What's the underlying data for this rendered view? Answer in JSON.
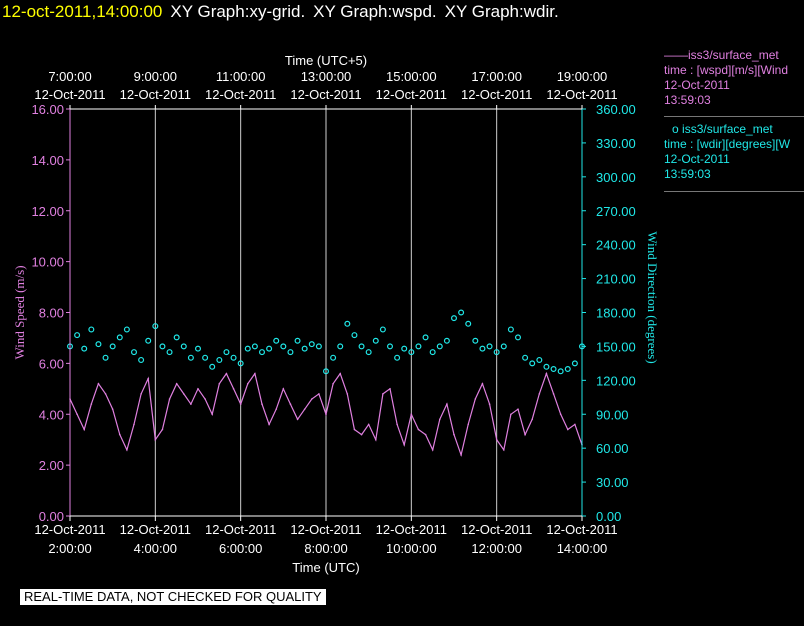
{
  "header": {
    "timestamp": "12-oct-2011,14:00:00",
    "graphs": [
      "XY Graph:xy-grid.",
      "XY Graph:wspd.",
      "XY Graph:wdir."
    ]
  },
  "legend": {
    "items": [
      {
        "marker": "——",
        "name": "iss3/surface_met",
        "var": "time : [wspd][m/s][Wind",
        "date": "12-Oct-2011",
        "time": "13:59:03",
        "color": "#e080e0"
      },
      {
        "marker": "o",
        "name": "iss3/surface_met",
        "var": "time : [wdir][degrees][W",
        "date": "12-Oct-2011",
        "time": "13:59:03",
        "color": "#20e8e8"
      }
    ]
  },
  "footer": {
    "qc_notice": "REAL-TIME DATA, NOT CHECKED FOR QUALITY"
  },
  "chart_data": {
    "type": "line",
    "top_axis_title": "Time (UTC+5)",
    "bottom_axis_title": "Time (UTC)",
    "left_axis_title": "Wind Speed (m/s)",
    "right_axis_title": "Wind Direction (degrees)",
    "top_ticks": [
      {
        "time": "7:00:00",
        "date": "12-Oct-2011"
      },
      {
        "time": "9:00:00",
        "date": "12-Oct-2011"
      },
      {
        "time": "11:00:00",
        "date": "12-Oct-2011"
      },
      {
        "time": "13:00:00",
        "date": "12-Oct-2011"
      },
      {
        "time": "15:00:00",
        "date": "12-Oct-2011"
      },
      {
        "time": "17:00:00",
        "date": "12-Oct-2011"
      },
      {
        "time": "19:00:00",
        "date": "12-Oct-2011"
      }
    ],
    "bottom_ticks": [
      {
        "time": "2:00:00",
        "date": "12-Oct-2011"
      },
      {
        "time": "4:00:00",
        "date": "12-Oct-2011"
      },
      {
        "time": "6:00:00",
        "date": "12-Oct-2011"
      },
      {
        "time": "8:00:00",
        "date": "12-Oct-2011"
      },
      {
        "time": "10:00:00",
        "date": "12-Oct-2011"
      },
      {
        "time": "12:00:00",
        "date": "12-Oct-2011"
      },
      {
        "time": "14:00:00",
        "date": "12-Oct-2011"
      }
    ],
    "xlim_utc": [
      "12-Oct-2011 02:00:00",
      "12-Oct-2011 14:00:00"
    ],
    "left_ticks": [
      "0.00",
      "2.00",
      "4.00",
      "6.00",
      "8.00",
      "10.00",
      "12.00",
      "14.00",
      "16.00"
    ],
    "right_ticks": [
      "0.00",
      "30.00",
      "60.00",
      "90.00",
      "120.00",
      "150.00",
      "180.00",
      "210.00",
      "240.00",
      "270.00",
      "300.00",
      "330.00",
      "360.00"
    ],
    "left_ylim": [
      0,
      16
    ],
    "right_ylim": [
      0,
      360
    ],
    "grid": "vertical lines at bottom ticks",
    "series": [
      {
        "name": "iss3/surface_met wspd",
        "axis": "left",
        "style": "line",
        "color": "#e080e0",
        "points": [
          [
            "02:00",
            4.6
          ],
          [
            "02:10",
            4.0
          ],
          [
            "02:20",
            3.4
          ],
          [
            "02:30",
            4.4
          ],
          [
            "02:40",
            5.2
          ],
          [
            "02:50",
            4.8
          ],
          [
            "03:00",
            4.2
          ],
          [
            "03:10",
            3.2
          ],
          [
            "03:20",
            2.6
          ],
          [
            "03:30",
            3.6
          ],
          [
            "03:40",
            4.8
          ],
          [
            "03:50",
            5.4
          ],
          [
            "04:00",
            3.0
          ],
          [
            "04:10",
            3.4
          ],
          [
            "04:20",
            4.6
          ],
          [
            "04:30",
            5.2
          ],
          [
            "04:40",
            4.8
          ],
          [
            "04:50",
            4.4
          ],
          [
            "05:00",
            5.0
          ],
          [
            "05:10",
            4.6
          ],
          [
            "05:20",
            4.0
          ],
          [
            "05:30",
            5.2
          ],
          [
            "05:40",
            5.6
          ],
          [
            "05:50",
            5.0
          ],
          [
            "06:00",
            4.4
          ],
          [
            "06:10",
            5.2
          ],
          [
            "06:20",
            5.6
          ],
          [
            "06:30",
            4.4
          ],
          [
            "06:40",
            3.6
          ],
          [
            "06:50",
            4.2
          ],
          [
            "07:00",
            5.0
          ],
          [
            "07:10",
            4.4
          ],
          [
            "07:20",
            3.8
          ],
          [
            "07:30",
            4.2
          ],
          [
            "07:40",
            4.6
          ],
          [
            "07:50",
            4.8
          ],
          [
            "08:00",
            4.0
          ],
          [
            "08:10",
            5.2
          ],
          [
            "08:20",
            5.6
          ],
          [
            "08:30",
            4.8
          ],
          [
            "08:40",
            3.4
          ],
          [
            "08:50",
            3.2
          ],
          [
            "09:00",
            3.6
          ],
          [
            "09:10",
            3.0
          ],
          [
            "09:20",
            4.8
          ],
          [
            "09:30",
            5.0
          ],
          [
            "09:40",
            3.6
          ],
          [
            "09:50",
            2.8
          ],
          [
            "10:00",
            4.0
          ],
          [
            "10:10",
            3.4
          ],
          [
            "10:20",
            3.2
          ],
          [
            "10:30",
            2.6
          ],
          [
            "10:40",
            3.8
          ],
          [
            "10:50",
            4.4
          ],
          [
            "11:00",
            3.2
          ],
          [
            "11:10",
            2.4
          ],
          [
            "11:20",
            3.6
          ],
          [
            "11:30",
            4.6
          ],
          [
            "11:40",
            5.2
          ],
          [
            "11:50",
            4.4
          ],
          [
            "12:00",
            3.0
          ],
          [
            "12:10",
            2.6
          ],
          [
            "12:20",
            4.0
          ],
          [
            "12:30",
            4.2
          ],
          [
            "12:40",
            3.2
          ],
          [
            "12:50",
            3.8
          ],
          [
            "13:00",
            4.8
          ],
          [
            "13:10",
            5.6
          ],
          [
            "13:20",
            4.8
          ],
          [
            "13:30",
            4.0
          ],
          [
            "13:40",
            3.4
          ],
          [
            "13:50",
            3.6
          ],
          [
            "14:00",
            2.8
          ]
        ]
      },
      {
        "name": "iss3/surface_met wdir",
        "axis": "right",
        "style": "circles",
        "color": "#20e8e8",
        "points": [
          [
            "02:00",
            150
          ],
          [
            "02:10",
            160
          ],
          [
            "02:20",
            148
          ],
          [
            "02:30",
            165
          ],
          [
            "02:40",
            152
          ],
          [
            "02:50",
            140
          ],
          [
            "03:00",
            150
          ],
          [
            "03:10",
            158
          ],
          [
            "03:20",
            165
          ],
          [
            "03:30",
            145
          ],
          [
            "03:40",
            138
          ],
          [
            "03:50",
            155
          ],
          [
            "04:00",
            168
          ],
          [
            "04:10",
            150
          ],
          [
            "04:20",
            145
          ],
          [
            "04:30",
            158
          ],
          [
            "04:40",
            150
          ],
          [
            "04:50",
            140
          ],
          [
            "05:00",
            148
          ],
          [
            "05:10",
            140
          ],
          [
            "05:20",
            132
          ],
          [
            "05:30",
            138
          ],
          [
            "05:40",
            145
          ],
          [
            "05:50",
            140
          ],
          [
            "06:00",
            135
          ],
          [
            "06:10",
            148
          ],
          [
            "06:20",
            150
          ],
          [
            "06:30",
            145
          ],
          [
            "06:40",
            148
          ],
          [
            "06:50",
            155
          ],
          [
            "07:00",
            150
          ],
          [
            "07:10",
            145
          ],
          [
            "07:20",
            155
          ],
          [
            "07:30",
            148
          ],
          [
            "07:40",
            152
          ],
          [
            "07:50",
            150
          ],
          [
            "08:00",
            128
          ],
          [
            "08:10",
            140
          ],
          [
            "08:20",
            150
          ],
          [
            "08:30",
            170
          ],
          [
            "08:40",
            160
          ],
          [
            "08:50",
            150
          ],
          [
            "09:00",
            145
          ],
          [
            "09:10",
            155
          ],
          [
            "09:20",
            165
          ],
          [
            "09:30",
            150
          ],
          [
            "09:40",
            140
          ],
          [
            "09:50",
            148
          ],
          [
            "10:00",
            145
          ],
          [
            "10:10",
            150
          ],
          [
            "10:20",
            158
          ],
          [
            "10:30",
            145
          ],
          [
            "10:40",
            150
          ],
          [
            "10:50",
            155
          ],
          [
            "11:00",
            175
          ],
          [
            "11:10",
            180
          ],
          [
            "11:20",
            170
          ],
          [
            "11:30",
            155
          ],
          [
            "11:40",
            148
          ],
          [
            "11:50",
            150
          ],
          [
            "12:00",
            145
          ],
          [
            "12:10",
            150
          ],
          [
            "12:20",
            165
          ],
          [
            "12:30",
            158
          ],
          [
            "12:40",
            140
          ],
          [
            "12:50",
            135
          ],
          [
            "13:00",
            138
          ],
          [
            "13:10",
            132
          ],
          [
            "13:20",
            130
          ],
          [
            "13:30",
            128
          ],
          [
            "13:40",
            130
          ],
          [
            "13:50",
            135
          ],
          [
            "14:00",
            150
          ]
        ]
      }
    ]
  }
}
